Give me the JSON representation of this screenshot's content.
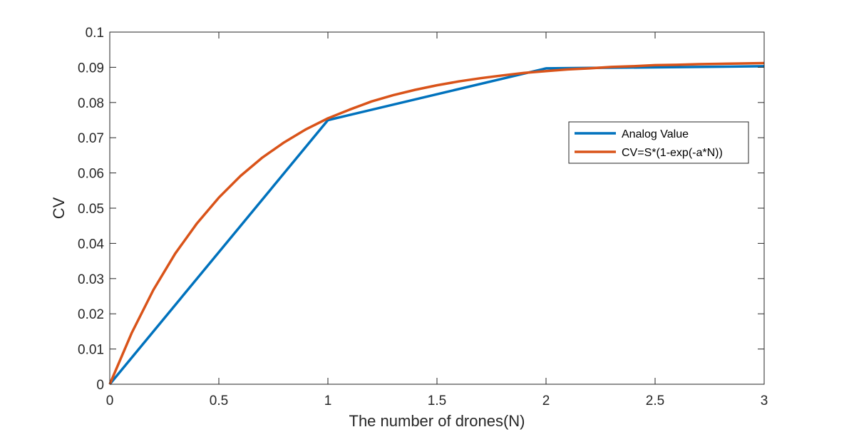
{
  "chart_data": {
    "type": "line",
    "xlabel": "The number of drones(N)",
    "ylabel": "CV",
    "xlim": [
      0,
      3
    ],
    "ylim": [
      0,
      0.1
    ],
    "xticks": [
      "0",
      "0.5",
      "1",
      "1.5",
      "2",
      "2.5",
      "3"
    ],
    "yticks": [
      "0",
      "0.01",
      "0.02",
      "0.03",
      "0.04",
      "0.05",
      "0.06",
      "0.07",
      "0.08",
      "0.09",
      "0.1"
    ],
    "grid": false,
    "legend_position": "upper-right",
    "series": [
      {
        "name": "Analog Value",
        "color": "#0072BD",
        "x": [
          0,
          1,
          2,
          3
        ],
        "y": [
          0,
          0.075,
          0.0897,
          0.0903
        ]
      },
      {
        "name": "CV=S*(1-exp(-a*N))",
        "color": "#D95319",
        "x": [
          0,
          0.1,
          0.2,
          0.3,
          0.4,
          0.5,
          0.6,
          0.7,
          0.8,
          0.9,
          1.0,
          1.1,
          1.2,
          1.3,
          1.4,
          1.5,
          1.6,
          1.7,
          1.8,
          1.9,
          2.0,
          2.1,
          2.2,
          2.3,
          2.4,
          2.5,
          2.6,
          2.7,
          2.8,
          2.9,
          3.0
        ],
        "y": [
          0,
          0.0145,
          0.0268,
          0.0371,
          0.0457,
          0.053,
          0.0592,
          0.0644,
          0.0687,
          0.0724,
          0.0755,
          0.078,
          0.0803,
          0.0821,
          0.0836,
          0.0849,
          0.086,
          0.0869,
          0.0877,
          0.0884,
          0.0889,
          0.0894,
          0.0897,
          0.0901,
          0.0903,
          0.0906,
          0.0907,
          0.0909,
          0.091,
          0.0911,
          0.0912
        ]
      }
    ]
  }
}
